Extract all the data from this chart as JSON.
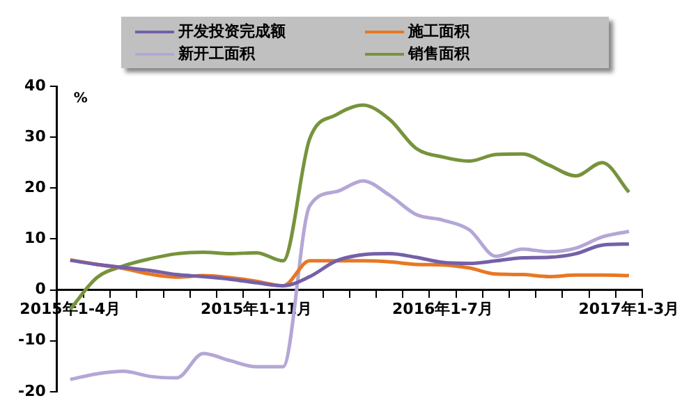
{
  "chart_data": {
    "type": "line",
    "ylabel": "%",
    "categories": [
      "2015年1-4月",
      null,
      null,
      null,
      null,
      null,
      null,
      "2015年1-11月",
      null,
      null,
      null,
      null,
      null,
      null,
      "2016年1-7月",
      null,
      null,
      null,
      null,
      null,
      null,
      "2017年1-3月"
    ],
    "series": [
      {
        "name": "开发投资完成额",
        "color": "#7460a8",
        "values": [
          5.8,
          5.0,
          4.4,
          3.8,
          3.0,
          2.6,
          2.1,
          1.4,
          0.8,
          2.6,
          5.7,
          6.9,
          7.1,
          6.4,
          5.4,
          5.2,
          5.7,
          6.3,
          6.4,
          7.1,
          8.8,
          9.0
        ]
      },
      {
        "name": "施工面积",
        "color": "#e87722",
        "values": [
          5.9,
          5.0,
          4.2,
          3.1,
          2.5,
          2.8,
          2.4,
          1.7,
          0.8,
          5.7,
          5.7,
          5.7,
          5.5,
          5.0,
          4.9,
          4.3,
          3.1,
          3.0,
          2.6,
          2.9,
          2.9,
          2.8
        ]
      },
      {
        "name": "新开工面积",
        "color": "#b4a7d6",
        "values": [
          -17.6,
          -16.5,
          -16.0,
          -17.0,
          -17.3,
          -12.5,
          -13.9,
          -15.1,
          -15.1,
          16.5,
          19.3,
          21.4,
          18.6,
          14.8,
          13.7,
          11.8,
          6.6,
          8.0,
          7.5,
          8.2,
          10.4,
          11.5
        ]
      },
      {
        "name": "销售面积",
        "color": "#77933c",
        "values": [
          -3.8,
          2.4,
          4.7,
          6.1,
          7.1,
          7.4,
          7.1,
          7.3,
          5.7,
          29.7,
          34.4,
          36.3,
          33.5,
          27.8,
          26.1,
          25.3,
          26.6,
          26.7,
          24.5,
          22.4,
          25.0,
          19.2
        ]
      }
    ],
    "ylim": [
      -20,
      40
    ],
    "yticks": [
      40,
      30,
      20,
      10,
      0,
      -10,
      -20
    ],
    "grid": false,
    "legend": "top",
    "marker": "none",
    "line_style": "solid"
  }
}
